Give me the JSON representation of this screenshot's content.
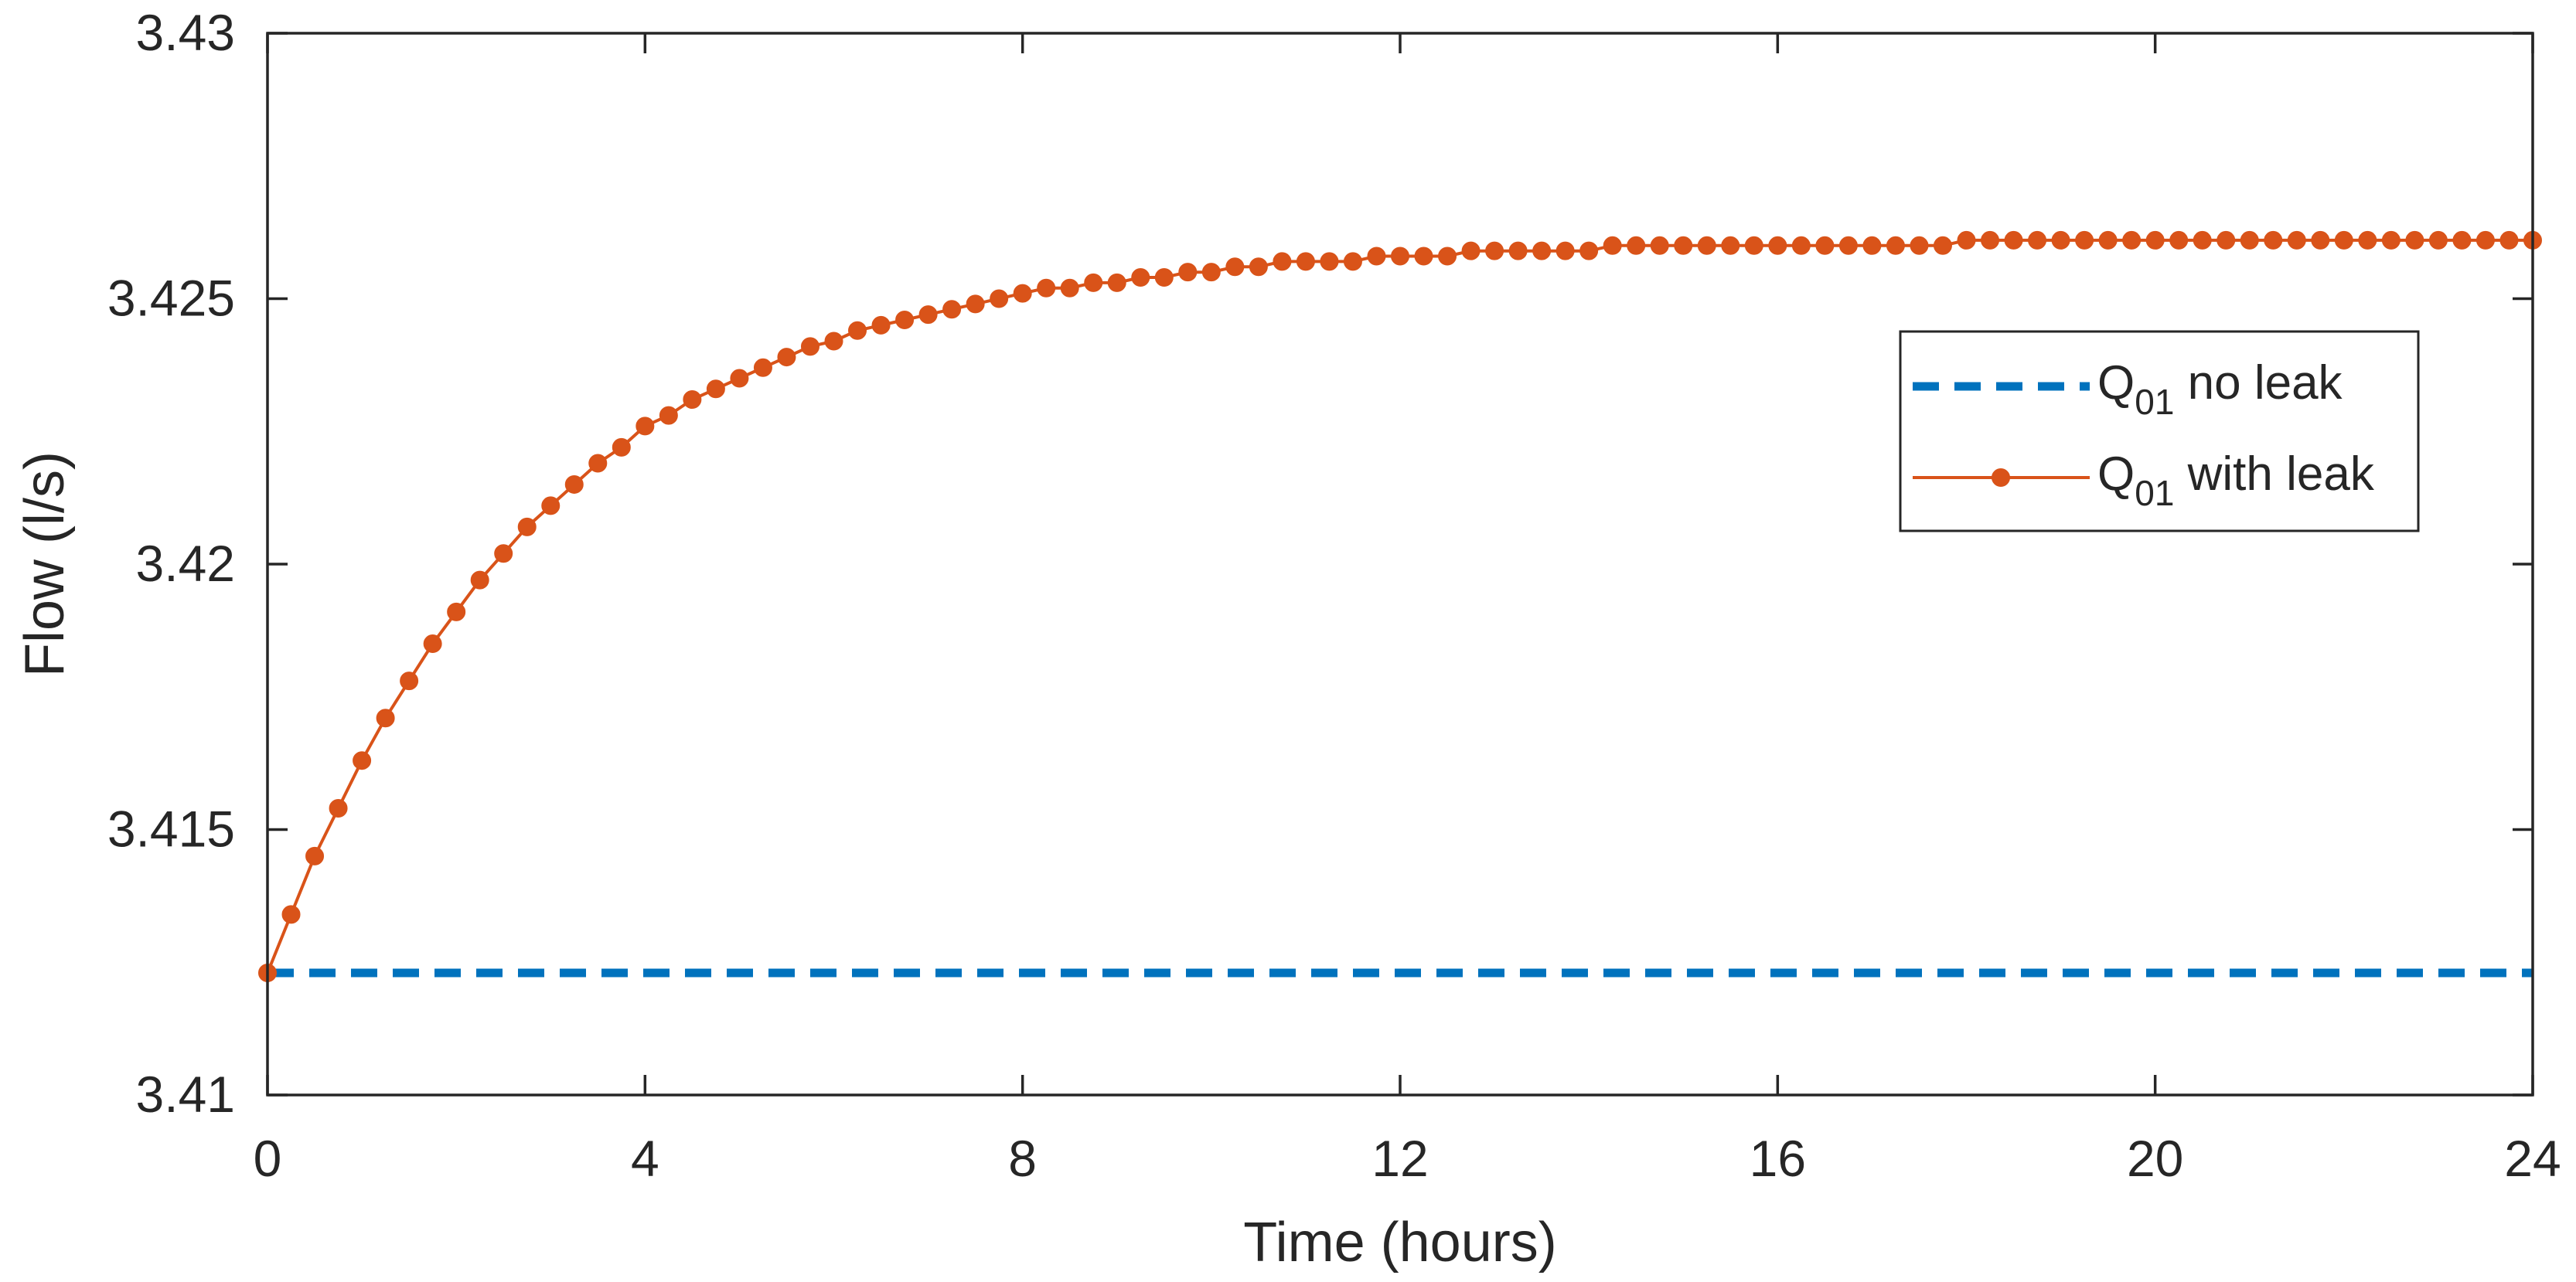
{
  "chart_data": {
    "type": "line",
    "title": "",
    "xlabel": "Time (hours)",
    "ylabel": "Flow (l/s)",
    "xlim": [
      0,
      24
    ],
    "ylim": [
      3.41,
      3.43
    ],
    "x_ticks": [
      "0",
      "4",
      "8",
      "12",
      "16",
      "20",
      "24"
    ],
    "x_tick_values": [
      0,
      4,
      8,
      12,
      16,
      20,
      24
    ],
    "y_ticks": [
      "3.41",
      "3.415",
      "3.42",
      "3.425",
      "3.43"
    ],
    "y_tick_values": [
      3.41,
      3.415,
      3.42,
      3.425,
      3.43
    ],
    "grid": false,
    "legend_position": "upper-right",
    "series": [
      {
        "legend_prefix": "Q",
        "legend_subscript": "01",
        "legend_suffix": " no leak",
        "color": "#0072BD",
        "line_style": "dashed",
        "marker": "none",
        "x": [
          0,
          24
        ],
        "y": [
          3.4123,
          3.4123
        ]
      },
      {
        "legend_prefix": "Q",
        "legend_subscript": "01",
        "legend_suffix": " with leak",
        "color": "#D95319",
        "line_style": "solid",
        "marker": "circle",
        "x": [
          0,
          0.25,
          0.5,
          0.75,
          1,
          1.25,
          1.5,
          1.75,
          2,
          2.25,
          2.5,
          2.75,
          3,
          3.25,
          3.5,
          3.75,
          4,
          4.25,
          4.5,
          4.75,
          5,
          5.25,
          5.5,
          5.75,
          6,
          6.25,
          6.5,
          6.75,
          7,
          7.25,
          7.5,
          7.75,
          8,
          8.25,
          8.5,
          8.75,
          9,
          9.25,
          9.5,
          9.75,
          10,
          10.25,
          10.5,
          10.75,
          11,
          11.25,
          11.5,
          11.75,
          12,
          12.25,
          12.5,
          12.75,
          13,
          13.25,
          13.5,
          13.75,
          14,
          14.25,
          14.5,
          14.75,
          15,
          15.25,
          15.5,
          15.75,
          16,
          16.25,
          16.5,
          16.75,
          17,
          17.25,
          17.5,
          17.75,
          18,
          18.25,
          18.5,
          18.75,
          19,
          19.25,
          19.5,
          19.75,
          20,
          20.25,
          20.5,
          20.75,
          21,
          21.25,
          21.5,
          21.75,
          22,
          22.25,
          22.5,
          22.75,
          23,
          23.25,
          23.5,
          23.75,
          24
        ],
        "y": [
          3.4123,
          3.4134,
          3.4145,
          3.4154,
          3.4163,
          3.4171,
          3.4178,
          3.4185,
          3.4191,
          3.4197,
          3.4202,
          3.4207,
          3.4211,
          3.4215,
          3.4219,
          3.4222,
          3.4226,
          3.4228,
          3.4231,
          3.4233,
          3.4235,
          3.4237,
          3.4239,
          3.4241,
          3.4242,
          3.4244,
          3.4245,
          3.4246,
          3.4247,
          3.4248,
          3.4249,
          3.425,
          3.4251,
          3.4252,
          3.4252,
          3.4253,
          3.4253,
          3.4254,
          3.4254,
          3.4255,
          3.4255,
          3.4256,
          3.4256,
          3.4257,
          3.4257,
          3.4257,
          3.4257,
          3.4258,
          3.4258,
          3.4258,
          3.4258,
          3.4259,
          3.4259,
          3.4259,
          3.4259,
          3.4259,
          3.4259,
          3.426,
          3.426,
          3.426,
          3.426,
          3.426,
          3.426,
          3.426,
          3.426,
          3.426,
          3.426,
          3.426,
          3.426,
          3.426,
          3.426,
          3.426,
          3.4261,
          3.4261,
          3.4261,
          3.4261,
          3.4261,
          3.4261,
          3.4261,
          3.4261,
          3.4261,
          3.4261,
          3.4261,
          3.4261,
          3.4261,
          3.4261,
          3.4261,
          3.4261,
          3.4261,
          3.4261,
          3.4261,
          3.4261,
          3.4261,
          3.4261,
          3.4261,
          3.4261,
          3.4261
        ]
      }
    ]
  }
}
